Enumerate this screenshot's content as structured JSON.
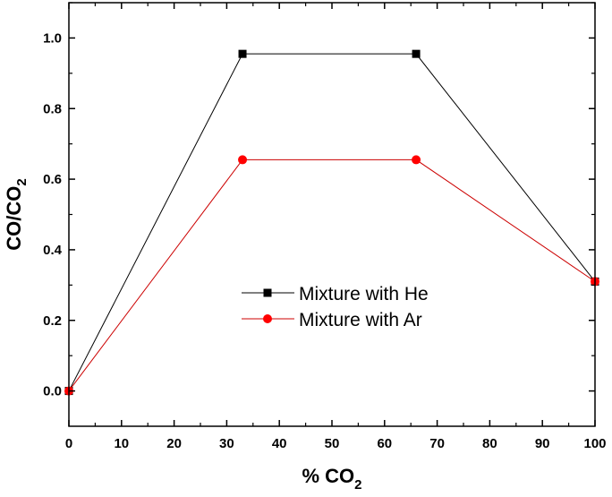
{
  "chart_data": {
    "type": "line",
    "title": "",
    "xlabel": "% CO",
    "xlabel_sub": "2",
    "ylabel": "CO/CO",
    "ylabel_sub": "2",
    "xlim": [
      0,
      100
    ],
    "ylim": [
      -0.1,
      1.1
    ],
    "xticks": [
      0,
      10,
      20,
      30,
      40,
      50,
      60,
      70,
      80,
      90,
      100
    ],
    "xtick_labels": [
      "0",
      "10",
      "20",
      "30",
      "40",
      "50",
      "60",
      "70",
      "80",
      "90",
      "100"
    ],
    "yticks": [
      0.0,
      0.2,
      0.4,
      0.6,
      0.8,
      1.0
    ],
    "ytick_labels": [
      "0.0",
      "0.2",
      "0.4",
      "0.6",
      "0.8",
      "1.0"
    ],
    "grid": false,
    "legend_position": "center-right",
    "series": [
      {
        "name": "Mixture with He",
        "color": "#000000",
        "marker": "square",
        "x": [
          0,
          33,
          66,
          100
        ],
        "y": [
          0.0,
          0.955,
          0.955,
          0.31
        ]
      },
      {
        "name": "Mixture with Ar",
        "color": "#ff0000",
        "line_color": "#cc0000",
        "marker": "circle",
        "x": [
          0,
          33,
          66,
          100
        ],
        "y": [
          0.0,
          0.655,
          0.655,
          0.31
        ]
      }
    ]
  }
}
